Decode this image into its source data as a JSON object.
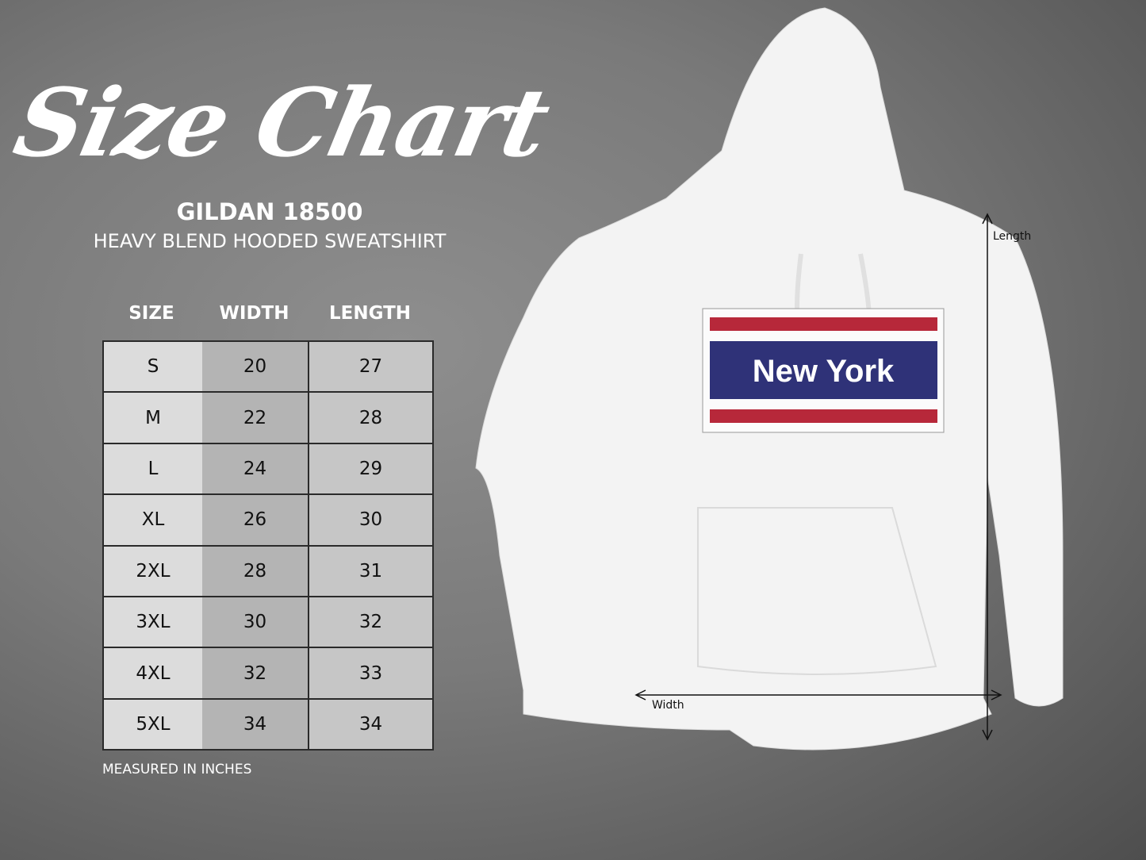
{
  "title": "Size Chart",
  "product_model": "GILDAN 18500",
  "product_name": "HEAVY BLEND HOODED SWEATSHIRT",
  "table": {
    "headers": [
      "SIZE",
      "WIDTH",
      "LENGTH"
    ],
    "rows": [
      [
        "S",
        "20",
        "27"
      ],
      [
        "M",
        "22",
        "28"
      ],
      [
        "L",
        "24",
        "29"
      ],
      [
        "XL",
        "26",
        "30"
      ],
      [
        "2XL",
        "28",
        "31"
      ],
      [
        "3XL",
        "30",
        "32"
      ],
      [
        "4XL",
        "32",
        "33"
      ],
      [
        "5XL",
        "34",
        "34"
      ]
    ]
  },
  "note": "MEASURED IN INCHES",
  "hoodie": {
    "print_text": "New York",
    "length_label": "Length",
    "width_label": "Width",
    "colors": {
      "navy": "#2f3278",
      "red": "#b7283a",
      "garment": "#f3f3f3"
    }
  }
}
